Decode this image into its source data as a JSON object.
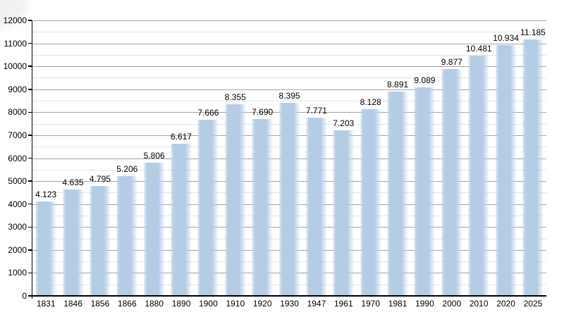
{
  "page": {
    "background": "#ffffff",
    "description": "Population bar chart, values in thousands, years 1831-2025"
  },
  "chart_data": {
    "type": "bar",
    "title": "",
    "xlabel": "",
    "ylabel": "",
    "categories": [
      "1831",
      "1846",
      "1856",
      "1866",
      "1880",
      "1890",
      "1900",
      "1910",
      "1920",
      "1930",
      "1947",
      "1961",
      "1970",
      "1981",
      "1990",
      "2000",
      "2010",
      "2020",
      "2025"
    ],
    "values": [
      4123,
      4635,
      4795,
      5206,
      5806,
      6617,
      7666,
      8355,
      7690,
      8395,
      7771,
      7203,
      8128,
      8891,
      9089,
      9877,
      10481,
      10934,
      11185
    ],
    "value_labels": [
      "4.123",
      "4.635",
      "4.795",
      "5.206",
      "5.806",
      "6.617",
      "7.666",
      "8.355",
      "7.690",
      "8.395",
      "7.771",
      "7.203",
      "8.128",
      "8.891",
      "9.089",
      "9.877",
      "10.481",
      "10.934",
      "11.185"
    ],
    "ylim": [
      0,
      12000
    ],
    "y_major_step": 1000,
    "y_minor_step": 500,
    "y_tick_labels": [
      "0",
      "1000",
      "2000",
      "3000",
      "4000",
      "5000",
      "6000",
      "7000",
      "8000",
      "9000",
      "10000",
      "11000",
      "12000"
    ],
    "grid": "major and minor horizontal gridlines",
    "legend": "none",
    "colors": {
      "bar_fill": "#b4cde4",
      "bar_fade_edge": "#eef4fa",
      "grid_major": "#a6a6a6",
      "grid_minor": "#e4e4e4",
      "axis": "#000000",
      "label_text": "#000000"
    }
  }
}
